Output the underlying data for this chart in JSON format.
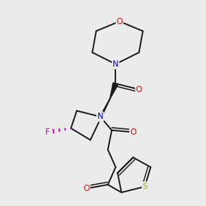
{
  "bg_color": "#ebebeb",
  "bond_color": "#1a1a1a",
  "atom_colors": {
    "O": "#ff0000",
    "N": "#0000cc",
    "F": "#cc00bb",
    "S": "#aaaa00",
    "C": "#1a1a1a"
  },
  "figsize": [
    3.0,
    3.0
  ],
  "dpi": 100
}
